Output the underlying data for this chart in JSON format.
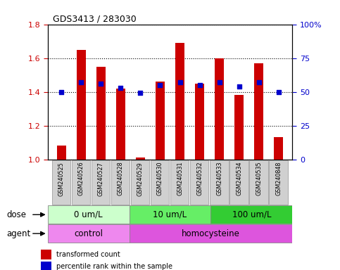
{
  "title": "GDS3413 / 283030",
  "samples": [
    "GSM240525",
    "GSM240526",
    "GSM240527",
    "GSM240528",
    "GSM240529",
    "GSM240530",
    "GSM240531",
    "GSM240532",
    "GSM240533",
    "GSM240534",
    "GSM240535",
    "GSM240848"
  ],
  "transformed_count": [
    1.08,
    1.65,
    1.55,
    1.42,
    1.01,
    1.46,
    1.69,
    1.45,
    1.6,
    1.38,
    1.57,
    1.13
  ],
  "percentile_rank": [
    50,
    57,
    56,
    53,
    49,
    55,
    57,
    55,
    57,
    54,
    57,
    50
  ],
  "ylim_left": [
    1.0,
    1.8
  ],
  "ylim_right": [
    0,
    100
  ],
  "yticks_left": [
    1.0,
    1.2,
    1.4,
    1.6,
    1.8
  ],
  "yticks_right": [
    0,
    25,
    50,
    75,
    100
  ],
  "ytick_labels_right": [
    "0",
    "25",
    "50",
    "75",
    "100%"
  ],
  "dose_groups": [
    {
      "label": "0 um/L",
      "start": 0,
      "end": 4,
      "color": "#ccffcc"
    },
    {
      "label": "10 um/L",
      "start": 4,
      "end": 8,
      "color": "#66ee66"
    },
    {
      "label": "100 um/L",
      "start": 8,
      "end": 12,
      "color": "#33cc33"
    }
  ],
  "agent_groups": [
    {
      "label": "control",
      "start": 0,
      "end": 4,
      "color": "#ee88ee"
    },
    {
      "label": "homocysteine",
      "start": 4,
      "end": 12,
      "color": "#dd55dd"
    }
  ],
  "bar_color": "#cc0000",
  "dot_color": "#0000cc",
  "legend_items": [
    {
      "color": "#cc0000",
      "label": "transformed count"
    },
    {
      "color": "#0000cc",
      "label": "percentile rank within the sample"
    }
  ],
  "xlabel_dose": "dose",
  "xlabel_agent": "agent",
  "background_color": "white",
  "tick_label_color_left": "#cc0000",
  "tick_label_color_right": "#0000cc",
  "sample_box_color": "#d0d0d0",
  "sample_box_edge": "#aaaaaa"
}
